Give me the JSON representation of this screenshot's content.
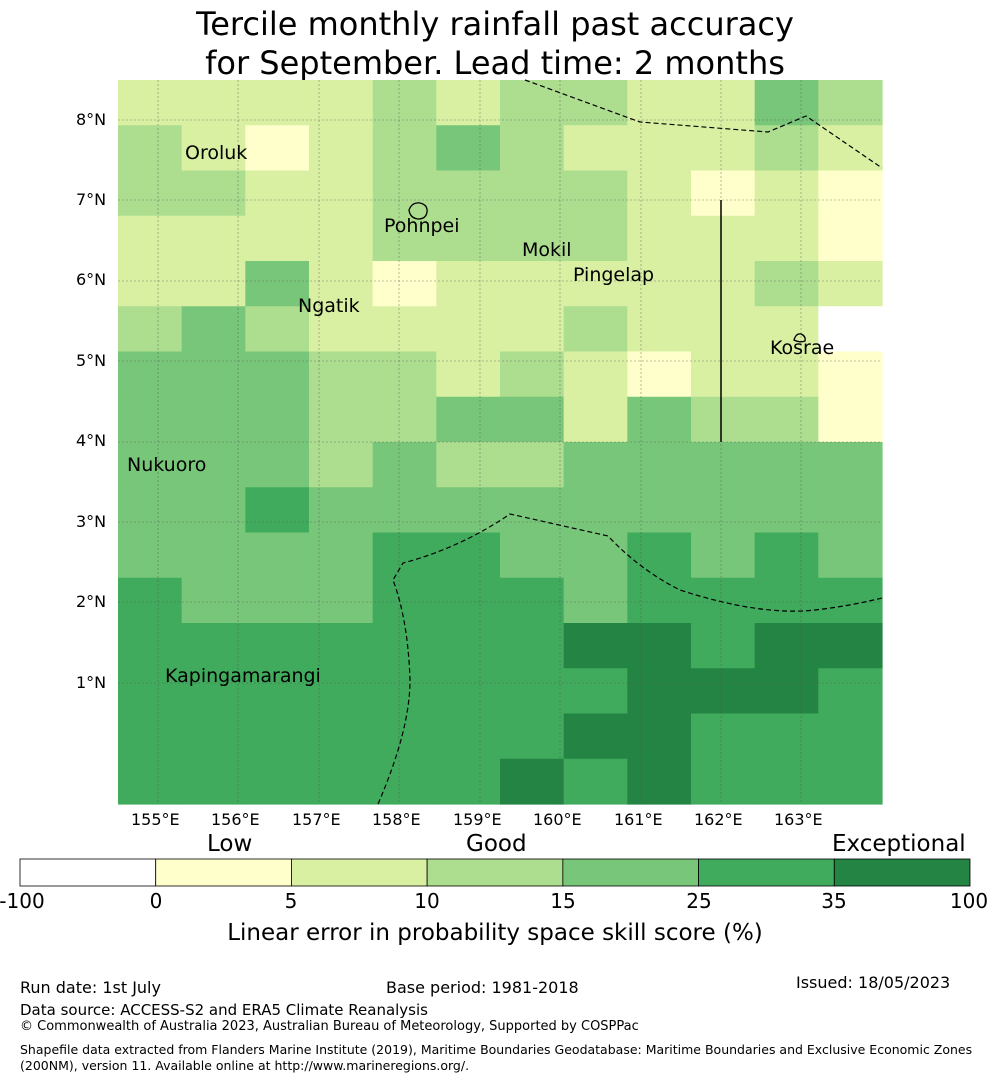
{
  "title": {
    "line1": "Tercile monthly rainfall past accuracy",
    "line2": "for September. Lead time: 2 months"
  },
  "map": {
    "lon_labels": [
      "155°E",
      "156°E",
      "157°E",
      "158°E",
      "159°E",
      "160°E",
      "161°E",
      "162°E",
      "163°E"
    ],
    "lat_labels": [
      "8°N",
      "7°N",
      "6°N",
      "5°N",
      "4°N",
      "3°N",
      "2°N",
      "1°N"
    ],
    "places": [
      {
        "name": "Oroluk"
      },
      {
        "name": "Pohnpei"
      },
      {
        "name": "Mokil"
      },
      {
        "name": "Pingelap"
      },
      {
        "name": "Ngatik"
      },
      {
        "name": "Kosrae"
      },
      {
        "name": "Nukuoro"
      },
      {
        "name": "Kapingamarangi"
      }
    ],
    "grid_colors_legend": {
      "c0": "#ffffff",
      "c1": "#ffffcc",
      "c2": "#d9f0a3",
      "c3": "#addd8e",
      "c4": "#78c679",
      "c5": "#41ab5d",
      "c6": "#238443"
    },
    "skill_grid": [
      [
        2,
        2,
        2,
        2,
        3,
        2,
        3,
        3,
        2,
        2,
        4,
        3
      ],
      [
        3,
        2,
        1,
        2,
        3,
        4,
        3,
        2,
        2,
        2,
        3,
        2
      ],
      [
        3,
        3,
        2,
        2,
        3,
        3,
        3,
        3,
        2,
        1,
        2,
        1
      ],
      [
        2,
        2,
        2,
        2,
        3,
        3,
        3,
        3,
        2,
        2,
        2,
        1
      ],
      [
        2,
        2,
        4,
        2,
        1,
        2,
        2,
        2,
        2,
        2,
        3,
        2
      ],
      [
        3,
        4,
        3,
        2,
        2,
        2,
        2,
        3,
        2,
        2,
        2,
        0
      ],
      [
        4,
        4,
        4,
        3,
        3,
        2,
        3,
        2,
        1,
        2,
        2,
        1
      ],
      [
        4,
        4,
        4,
        3,
        3,
        4,
        4,
        2,
        4,
        3,
        3,
        1
      ],
      [
        4,
        4,
        4,
        3,
        4,
        3,
        3,
        4,
        4,
        4,
        4,
        4
      ],
      [
        4,
        4,
        5,
        4,
        4,
        4,
        4,
        4,
        4,
        4,
        4,
        4
      ],
      [
        4,
        4,
        4,
        4,
        5,
        5,
        4,
        4,
        5,
        4,
        5,
        4
      ],
      [
        5,
        4,
        4,
        4,
        5,
        5,
        5,
        4,
        5,
        5,
        5,
        5
      ],
      [
        5,
        5,
        5,
        5,
        5,
        5,
        5,
        6,
        6,
        5,
        6,
        6
      ],
      [
        5,
        5,
        5,
        5,
        5,
        5,
        5,
        5,
        6,
        6,
        6,
        5
      ],
      [
        5,
        5,
        5,
        5,
        5,
        5,
        5,
        6,
        6,
        5,
        5,
        5
      ],
      [
        5,
        5,
        5,
        5,
        5,
        5,
        6,
        5,
        6,
        5,
        5,
        5
      ]
    ]
  },
  "colorbar": {
    "categories": [
      "Low",
      "Good",
      "Exceptional"
    ],
    "ticks": [
      "-100",
      "0",
      "5",
      "10",
      "15",
      "25",
      "35",
      "100"
    ],
    "label": "Linear error in probability space skill score (%)",
    "colors": [
      "#ffffff",
      "#ffffcc",
      "#d9f0a3",
      "#addd8e",
      "#78c679",
      "#41ab5d",
      "#238443"
    ]
  },
  "footer": {
    "run_date": "Run date: 1st July",
    "base_period": "Base period: 1981-2018",
    "issued": "Issued: 18/05/2023",
    "data_source": "Data source: ACCESS-S2 and ERA5 Climate Reanalysis",
    "copyright": "© Commonwealth of Australia 2023, Australian Bureau of Meteorology, Supported by COSPPac",
    "shapefile_line1": "Shapefile data extracted from Flanders Marine Institute (2019), Maritime Boundaries Geodatabase: Maritime Boundaries and Exclusive Economic Zones",
    "shapefile_line2": "(200NM), version 11. Available online at http://www.marineregions.org/."
  }
}
